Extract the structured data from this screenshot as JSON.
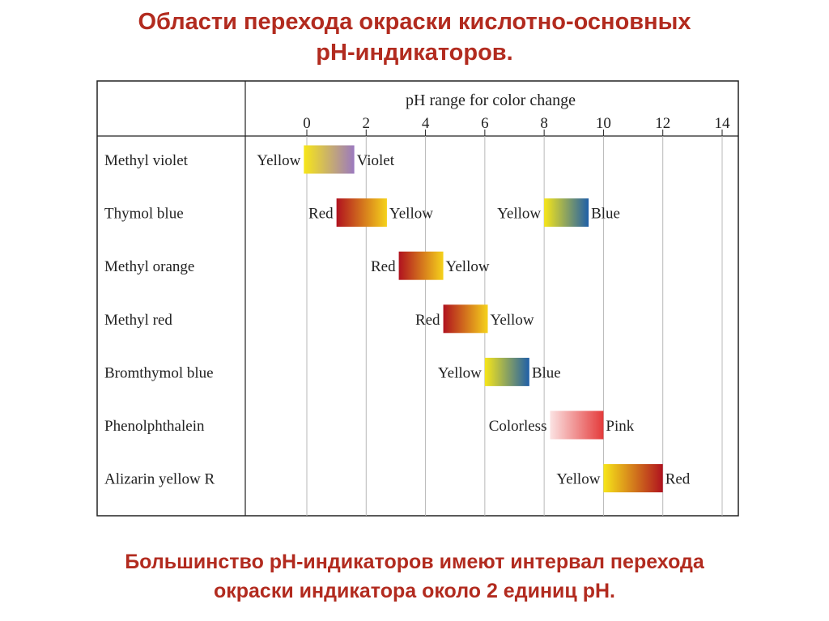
{
  "slide": {
    "title_line1": "Области перехода окраски кислотно-основных",
    "title_line2": "pH-индикаторов.",
    "footer_line1": "Большинство pH-индикаторов имеют интервал перехода",
    "footer_line2": "окраски индикатора около 2 единиц pH."
  },
  "chart_data": {
    "type": "range-bar",
    "title": "pH range for color change",
    "xlim": [
      0,
      14
    ],
    "ticks": [
      0,
      2,
      4,
      6,
      8,
      10,
      12,
      14
    ],
    "grid": true,
    "indicators": [
      {
        "name": "Methyl violet",
        "ranges": [
          {
            "from": -0.1,
            "to": 1.6,
            "low_label": "Yellow",
            "high_label": "Violet",
            "low_color": "#f7e619",
            "high_color": "#9b79bf"
          }
        ]
      },
      {
        "name": "Thymol blue",
        "ranges": [
          {
            "from": 1.0,
            "to": 2.7,
            "low_label": "Red",
            "high_label": "Yellow",
            "low_color": "#b0121f",
            "high_color": "#f5d21b"
          },
          {
            "from": 8.0,
            "to": 9.5,
            "low_label": "Yellow",
            "high_label": "Blue",
            "low_color": "#f7e619",
            "high_color": "#1f5fa8"
          }
        ]
      },
      {
        "name": "Methyl orange",
        "ranges": [
          {
            "from": 3.1,
            "to": 4.6,
            "low_label": "Red",
            "high_label": "Yellow",
            "low_color": "#b0121f",
            "high_color": "#f5d21b"
          }
        ]
      },
      {
        "name": "Methyl red",
        "ranges": [
          {
            "from": 4.6,
            "to": 6.1,
            "low_label": "Red",
            "high_label": "Yellow",
            "low_color": "#b0121f",
            "high_color": "#f5d21b"
          }
        ]
      },
      {
        "name": "Bromthymol blue",
        "ranges": [
          {
            "from": 6.0,
            "to": 7.5,
            "low_label": "Yellow",
            "high_label": "Blue",
            "low_color": "#f7e619",
            "high_color": "#1f5fa8"
          }
        ]
      },
      {
        "name": "Phenolphthalein",
        "ranges": [
          {
            "from": 8.2,
            "to": 10.0,
            "low_label": "Colorless",
            "high_label": "Pink",
            "low_color": "#fbe3e3",
            "high_color": "#e43a3a"
          }
        ]
      },
      {
        "name": "Alizarin yellow R",
        "ranges": [
          {
            "from": 10.0,
            "to": 12.0,
            "low_label": "Yellow",
            "high_label": "Red",
            "low_color": "#f7e619",
            "high_color": "#b0121f"
          }
        ]
      }
    ]
  }
}
